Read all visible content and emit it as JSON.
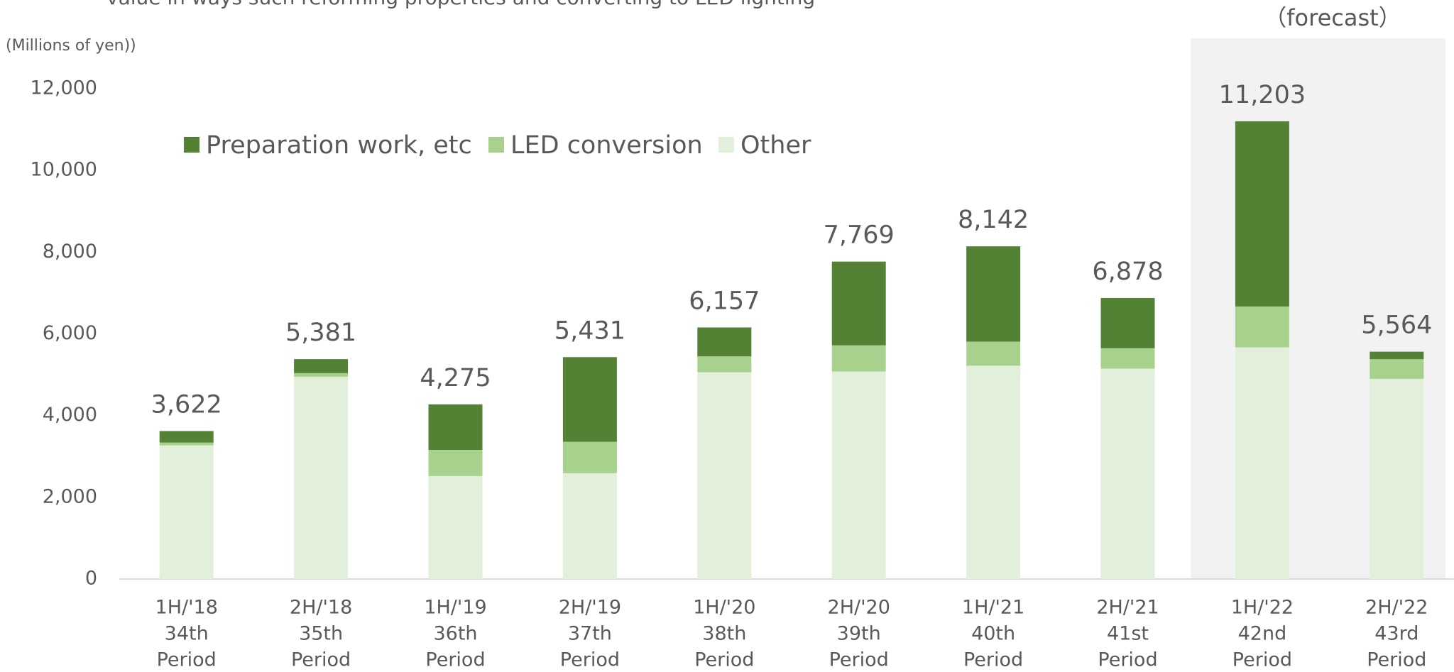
{
  "chart_data": {
    "type": "stacked_bar",
    "subtitle": "value in ways such reforming properties and converting to LED lighting",
    "y_axis_label": "(Millions of yen))",
    "annotation": "（forecast）",
    "categories": [
      [
        "1H/'18",
        "34th",
        "Period"
      ],
      [
        "2H/'18",
        "35th",
        "Period"
      ],
      [
        "1H/'19",
        "36th",
        "Period"
      ],
      [
        "2H/'19",
        "37th",
        "Period"
      ],
      [
        "1H/'20",
        "38th",
        "Period"
      ],
      [
        "2H/'20",
        "39th",
        "Period"
      ],
      [
        "1H/'21",
        "40th",
        "Period"
      ],
      [
        "2H/'21",
        "41st",
        "Period"
      ],
      [
        "1H/'22",
        "42nd",
        "Period"
      ],
      [
        "2H/'22",
        "43rd",
        "Period"
      ]
    ],
    "series": [
      {
        "name": "Preparation work, etc",
        "color": "#548235",
        "values": [
          282,
          341,
          1115,
          2071,
          707,
          2049,
          2332,
          1228,
          4533,
          184
        ]
      },
      {
        "name": "LED conversion",
        "color": "#a9d18e",
        "values": [
          70,
          90,
          640,
          770,
          390,
          640,
          590,
          500,
          1000,
          480
        ]
      },
      {
        "name": "Other",
        "color": "#e2efda",
        "values": [
          3270,
          4950,
          2520,
          2590,
          5060,
          5080,
          5220,
          5150,
          5670,
          4900
        ]
      }
    ],
    "totals": [
      3622,
      5381,
      4275,
      5431,
      6157,
      7769,
      8142,
      6878,
      11203,
      5564
    ],
    "total_labels": [
      "3,622",
      "5,381",
      "4,275",
      "5,431",
      "6,157",
      "7,769",
      "8,142",
      "6,878",
      "11,203",
      "5,564"
    ],
    "forecast_from": 8,
    "ylim": [
      0,
      12000
    ],
    "yticks": [
      0,
      {
        "value": 2000,
        "label": "2,000"
      },
      {
        "value": 4000,
        "label": "4,000"
      },
      {
        "value": 6000,
        "label": "6,000"
      },
      {
        "value": 8000,
        "label": "8,000"
      },
      {
        "value": 10000,
        "label": "10,000"
      },
      {
        "value": 12000,
        "label": "12,000"
      }
    ],
    "legend": "top-left",
    "grid": false
  }
}
